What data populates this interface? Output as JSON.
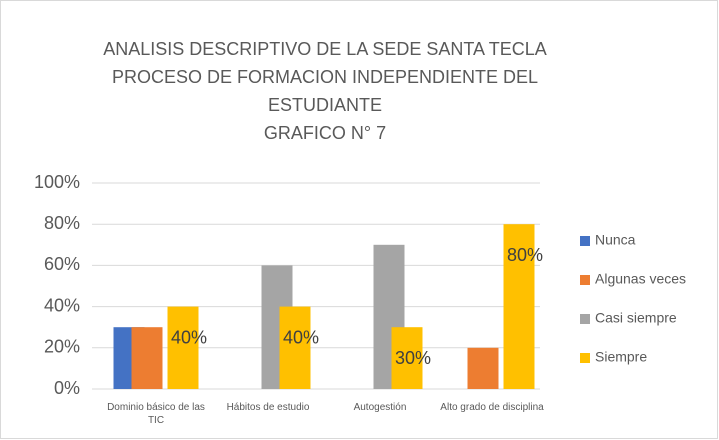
{
  "chart_data": {
    "type": "bar",
    "title": [
      "ANALISIS DESCRIPTIVO DE LA SEDE SANTA TECLA",
      "PROCESO DE FORMACION INDEPENDIENTE DEL",
      "ESTUDIANTE",
      "GRAFICO N° 7"
    ],
    "categories": [
      "Dominio básico de las TIC",
      "Hábitos de estudio",
      "Autogestión",
      "Alto grado de disciplina"
    ],
    "series": [
      {
        "name": "Nunca",
        "color": "#4472c4",
        "values": [
          30,
          0,
          0,
          0
        ]
      },
      {
        "name": "Algunas veces",
        "color": "#ed7d31",
        "values": [
          30,
          0,
          0,
          20
        ]
      },
      {
        "name": "Casi siempre",
        "color": "#a5a5a5",
        "values": [
          0,
          60,
          70,
          0
        ]
      },
      {
        "name": "Siempre",
        "color": "#ffc000",
        "values": [
          40,
          40,
          30,
          80
        ],
        "value_labels": [
          "40%",
          "40%",
          "30%",
          "80%"
        ]
      }
    ],
    "ylim": [
      0,
      100
    ],
    "yticks": [
      {
        "value": 0,
        "label": "0%"
      },
      {
        "value": 20,
        "label": "20%"
      },
      {
        "value": 40,
        "label": "40%"
      },
      {
        "value": 60,
        "label": "60%"
      },
      {
        "value": 80,
        "label": "80%"
      },
      {
        "value": 100,
        "label": "100%"
      }
    ],
    "grid": true,
    "legend": "right"
  }
}
